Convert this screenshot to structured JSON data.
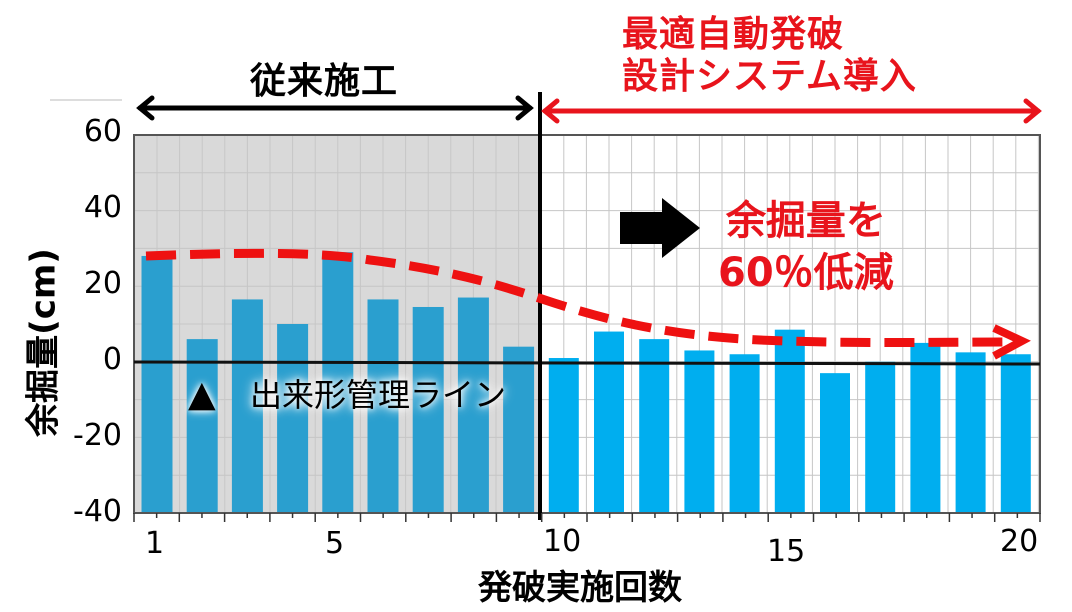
{
  "header": {
    "left_title": "従来施工",
    "right_title_line1": "最適自動発破",
    "right_title_line2": "設計システム導入"
  },
  "annotations": {
    "reduction_line1": "余掘量を",
    "reduction_line2": "60％低減",
    "management_marker": "▲",
    "management_label": "出来形管理ライン"
  },
  "axes": {
    "ylabel": "余掘量(cm)",
    "xlabel": "発破実施回数",
    "yticks": [
      "60",
      "40",
      "20",
      "0",
      "-20",
      "-40"
    ],
    "xticks": [
      "1",
      "5",
      "10",
      "15",
      "20"
    ]
  },
  "colors": {
    "left_bar": "#2a9fcf",
    "right_bar": "#00aeef",
    "left_bg": "#d9d9d9",
    "trend": "#ee1111",
    "right_arrow": "#e8141c"
  },
  "chart_data": {
    "type": "bar",
    "title": "",
    "xlabel": "発破実施回数",
    "ylabel": "余掘量(cm)",
    "ylim": [
      -40,
      60
    ],
    "grid": true,
    "categories": [
      1,
      2,
      3,
      4,
      5,
      6,
      7,
      8,
      9,
      10,
      11,
      12,
      13,
      14,
      15,
      16,
      17,
      18,
      19,
      20
    ],
    "series": [
      {
        "name": "従来施工",
        "x": [
          1,
          2,
          3,
          4,
          5,
          6,
          7,
          8,
          9
        ],
        "values": [
          28,
          6,
          16.5,
          10,
          29,
          16.5,
          14.5,
          17,
          4
        ]
      },
      {
        "name": "最適自動発破設計システム導入",
        "x": [
          10,
          11,
          12,
          13,
          14,
          15,
          16,
          17,
          18,
          19,
          20
        ],
        "values": [
          1,
          8,
          6,
          3,
          2,
          8.5,
          -3,
          0,
          5,
          2.5,
          2
        ]
      }
    ],
    "trend_line": {
      "name": "余掘量 trend (dashed)",
      "x": [
        1,
        5,
        9,
        12,
        20
      ],
      "values": [
        28,
        27.5,
        18,
        8,
        5
      ]
    },
    "annotations": [
      "従来施工",
      "最適自動発破設計システム導入",
      "余掘量を60％低減",
      "▲ 出来形管理ライン"
    ],
    "divider_x": 9.5
  }
}
